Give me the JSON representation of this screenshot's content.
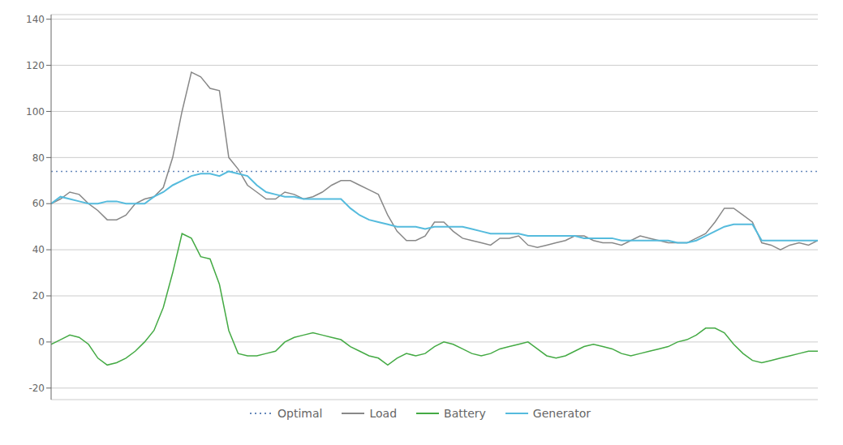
{
  "chart_data": {
    "type": "line",
    "x": [
      0,
      1,
      2,
      3,
      4,
      5,
      6,
      7,
      8,
      9,
      10,
      11,
      12,
      13,
      14,
      15,
      16,
      17,
      18,
      19,
      20,
      21,
      22,
      23,
      24,
      25,
      26,
      27,
      28,
      29,
      30,
      31,
      32,
      33,
      34,
      35,
      36,
      37,
      38,
      39,
      40,
      41,
      42,
      43,
      44,
      45,
      46,
      47,
      48,
      49,
      50,
      51,
      52,
      53,
      54,
      55,
      56,
      57,
      58,
      59,
      60,
      61,
      62,
      63,
      64,
      65,
      66,
      67,
      68,
      69,
      70,
      71,
      72,
      73,
      74,
      75,
      76,
      77,
      78,
      79,
      80,
      81,
      82
    ],
    "xlim": [
      0,
      82
    ],
    "ylim": [
      -25,
      142
    ],
    "yticks": [
      -20,
      0,
      20,
      40,
      60,
      80,
      100,
      120,
      140
    ],
    "grid": true,
    "tick_labels": "y",
    "series": [
      {
        "name": "Optimal",
        "type": "hline",
        "y": 74,
        "color": "#6688bb",
        "line_style": "dotted"
      },
      {
        "name": "Load",
        "color": "#888888",
        "line_style": "solid",
        "values": [
          60,
          62,
          65,
          64,
          60,
          57,
          53,
          53,
          55,
          60,
          62,
          63,
          67,
          80,
          100,
          117,
          115,
          110,
          109,
          80,
          75,
          68,
          65,
          62,
          62,
          65,
          64,
          62,
          63,
          65,
          68,
          70,
          70,
          68,
          66,
          64,
          55,
          48,
          44,
          44,
          46,
          52,
          52,
          48,
          45,
          44,
          43,
          42,
          45,
          45,
          46,
          42,
          41,
          42,
          43,
          44,
          46,
          46,
          44,
          43,
          43,
          42,
          44,
          46,
          45,
          44,
          43,
          43,
          43,
          45,
          47,
          52,
          58,
          58,
          55,
          52,
          43,
          42,
          40,
          42,
          43,
          42,
          44
        ]
      },
      {
        "name": "Battery",
        "color": "#44aa44",
        "line_style": "solid",
        "values": [
          -1,
          1,
          3,
          2,
          -1,
          -7,
          -10,
          -9,
          -7,
          -4,
          0,
          5,
          15,
          30,
          47,
          45,
          37,
          36,
          25,
          5,
          -5,
          -6,
          -6,
          -5,
          -4,
          0,
          2,
          3,
          4,
          3,
          2,
          1,
          -2,
          -4,
          -6,
          -7,
          -10,
          -7,
          -5,
          -6,
          -5,
          -2,
          0,
          -1,
          -3,
          -5,
          -6,
          -5,
          -3,
          -2,
          -1,
          0,
          -3,
          -6,
          -7,
          -6,
          -4,
          -2,
          -1,
          -2,
          -3,
          -5,
          -6,
          -5,
          -4,
          -3,
          -2,
          0,
          1,
          3,
          6,
          6,
          4,
          -1,
          -5,
          -8,
          -9,
          -8,
          -7,
          -6,
          -5,
          -4,
          -4
        ]
      },
      {
        "name": "Generator",
        "color": "#55bbdd",
        "line_style": "solid",
        "values": [
          60,
          63,
          62,
          61,
          60,
          60,
          61,
          61,
          60,
          60,
          60,
          63,
          65,
          68,
          70,
          72,
          73,
          73,
          72,
          74,
          73,
          72,
          68,
          65,
          64,
          63,
          63,
          62,
          62,
          62,
          62,
          62,
          58,
          55,
          53,
          52,
          51,
          50,
          50,
          50,
          49,
          50,
          50,
          50,
          50,
          49,
          48,
          47,
          47,
          47,
          47,
          46,
          46,
          46,
          46,
          46,
          46,
          45,
          45,
          45,
          45,
          44,
          44,
          44,
          44,
          44,
          44,
          43,
          43,
          44,
          46,
          48,
          50,
          51,
          51,
          51,
          44,
          44,
          44,
          44,
          44,
          44,
          44
        ]
      }
    ]
  }
}
